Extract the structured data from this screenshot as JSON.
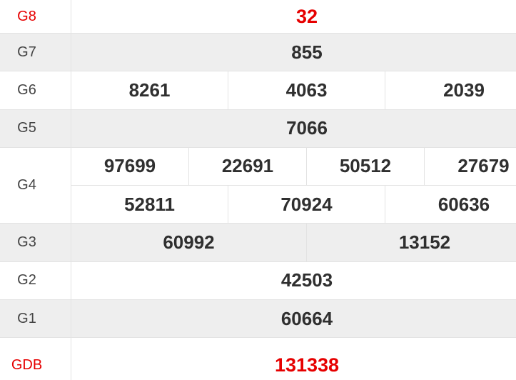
{
  "colors": {
    "accent_red": "#e60000",
    "row_shade": "#eeeeee",
    "border": "#e3e3e3",
    "value_text": "#2f2f2f",
    "label_text": "#444444"
  },
  "table": {
    "rows": [
      {
        "label": "G8",
        "cells": [
          "32"
        ]
      },
      {
        "label": "G7",
        "cells": [
          "855"
        ]
      },
      {
        "label": "G6",
        "cells": [
          "8261",
          "4063",
          "2039"
        ]
      },
      {
        "label": "G5",
        "cells": [
          "7066"
        ]
      },
      {
        "label": "G4",
        "cells_top": [
          "97699",
          "22691",
          "50512",
          "27679"
        ],
        "cells_bottom": [
          "52811",
          "70924",
          "60636"
        ]
      },
      {
        "label": "G3",
        "cells": [
          "60992",
          "13152"
        ]
      },
      {
        "label": "G2",
        "cells": [
          "42503"
        ]
      },
      {
        "label": "G1",
        "cells": [
          "60664"
        ]
      },
      {
        "label": "GDB",
        "cells": [
          "131338"
        ]
      }
    ]
  }
}
